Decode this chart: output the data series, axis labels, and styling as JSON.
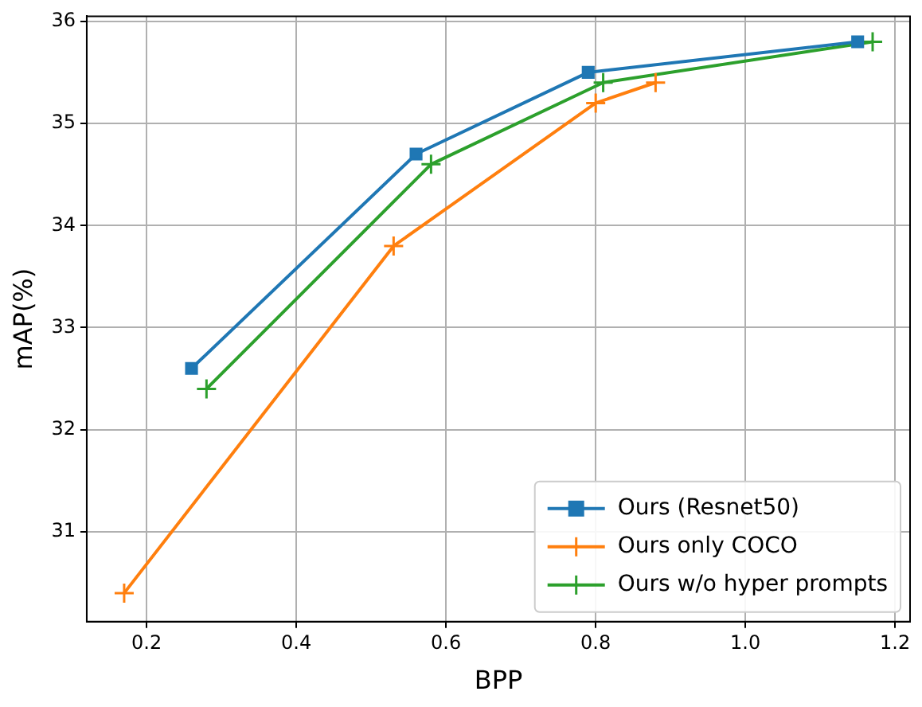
{
  "chart_data": {
    "type": "line",
    "xlabel": "BPP",
    "ylabel": "mAP(%)",
    "series": [
      {
        "name": "Ours (Resnet50)",
        "color": "#1f77b4",
        "marker": "square",
        "x": [
          0.26,
          0.56,
          0.79,
          1.15
        ],
        "values": [
          32.6,
          34.7,
          35.5,
          35.8
        ]
      },
      {
        "name": "Ours only COCO",
        "color": "#ff7f0e",
        "marker": "cross",
        "x": [
          0.17,
          0.53,
          0.8,
          0.88
        ],
        "values": [
          30.4,
          33.8,
          35.2,
          35.4
        ]
      },
      {
        "name": "Ours w/o hyper prompts",
        "color": "#2ca02c",
        "marker": "cross",
        "x": [
          0.28,
          0.58,
          0.81,
          1.17
        ],
        "values": [
          32.4,
          34.6,
          35.4,
          35.8
        ]
      }
    ],
    "xlim": [
      0.12,
      1.22
    ],
    "xticks": [
      {
        "value": 0.2,
        "label": "0.2"
      },
      {
        "value": 0.4,
        "label": "0.4"
      },
      {
        "value": 0.6,
        "label": "0.6"
      },
      {
        "value": 0.8,
        "label": "0.8"
      },
      {
        "value": 1.0,
        "label": "1.0"
      },
      {
        "value": 1.2,
        "label": "1.2"
      }
    ],
    "ylim": [
      30.12,
      36.05
    ],
    "yticks": [
      31,
      32,
      33,
      34,
      35,
      36
    ],
    "grid": true,
    "legend": "bottom right"
  }
}
